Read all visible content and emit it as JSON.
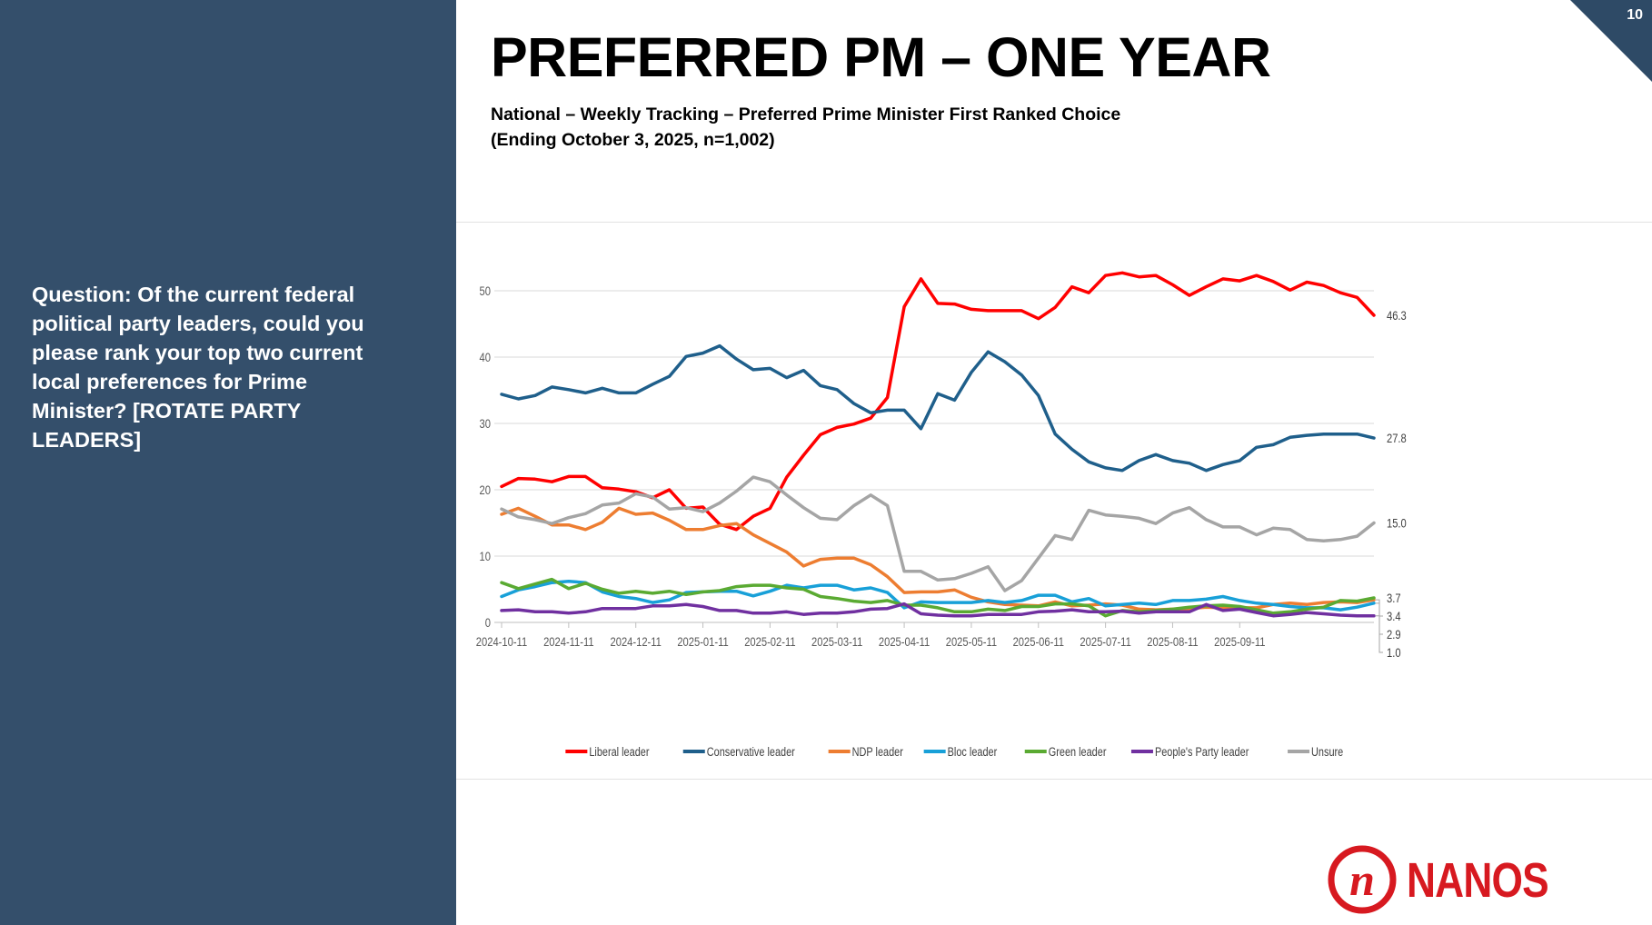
{
  "page": {
    "title": "PREFERRED PM – ONE YEAR",
    "subtitle_line1": "National – Weekly Tracking – Preferred Prime Minister First Ranked Choice",
    "subtitle_line2": "(Ending October 3, 2025, n=1,002)",
    "question": "Question: Of the current federal political party leaders, could you please rank your top two current local preferences for Prime Minister? [ROTATE PARTY LEADERS]",
    "page_number": "10",
    "logo_text": "NANOS",
    "logo_mark": "n"
  },
  "colors": {
    "sidebar": "#344f6b",
    "corner": "#2e4a66",
    "brand_red": "#d71920"
  },
  "chart_data": {
    "type": "line",
    "x_tick_labels": [
      "2024-10-11",
      "2024-11-11",
      "2024-12-11",
      "2025-01-11",
      "2025-02-11",
      "2025-03-11",
      "2025-04-11",
      "2025-05-11",
      "2025-06-11",
      "2025-07-11",
      "2025-08-11",
      "2025-09-11"
    ],
    "x_tick_index": [
      0,
      4,
      8,
      12,
      16,
      20,
      24,
      28,
      32,
      36,
      40,
      44
    ],
    "ylim": [
      0,
      50
    ],
    "yticks": [
      0,
      10,
      20,
      30,
      40,
      50
    ],
    "grid": true,
    "legend_position": "bottom",
    "end_labels": [
      "46.3",
      "27.8",
      "15.0",
      "3.4",
      "2.9",
      "3.7",
      "1.0"
    ],
    "series": [
      {
        "name": "Liberal leader",
        "color": "#ff0000",
        "values": [
          20.5,
          21.7,
          21.6,
          21.2,
          22.0,
          22.0,
          20.3,
          20.1,
          19.7,
          18.8,
          20.0,
          17.2,
          17.4,
          14.8,
          14.0,
          16.0,
          17.2,
          21.9,
          25.2,
          28.3,
          29.4,
          29.9,
          30.8,
          33.9,
          47.6,
          51.8,
          48.1,
          48.0,
          47.2,
          47.0,
          47.0,
          47.0,
          45.8,
          47.5,
          50.6,
          49.7,
          52.3,
          52.7,
          52.1,
          52.3,
          50.9,
          49.3,
          50.6,
          51.8,
          51.5,
          52.3,
          51.4,
          50.1,
          51.3,
          50.8,
          49.7,
          49.0,
          46.3
        ]
      },
      {
        "name": "Conservative leader",
        "color": "#1f5f8b",
        "values": [
          34.4,
          33.7,
          34.2,
          35.5,
          35.1,
          34.6,
          35.3,
          34.6,
          34.6,
          35.9,
          37.1,
          40.1,
          40.6,
          41.7,
          39.7,
          38.1,
          38.3,
          36.9,
          38.0,
          35.7,
          35.1,
          33.0,
          31.6,
          32.0,
          32.0,
          29.2,
          34.5,
          33.5,
          37.7,
          40.8,
          39.3,
          37.3,
          34.2,
          28.4,
          26.1,
          24.2,
          23.3,
          22.9,
          24.4,
          25.3,
          24.4,
          24.0,
          22.9,
          23.8,
          24.4,
          26.4,
          26.8,
          27.9,
          28.2,
          28.4,
          28.4,
          28.4,
          27.8
        ]
      },
      {
        "name": "NDP leader",
        "color": "#ed7d31",
        "values": [
          16.3,
          17.2,
          16.0,
          14.7,
          14.7,
          14.0,
          15.1,
          17.2,
          16.3,
          16.5,
          15.4,
          14.0,
          14.0,
          14.6,
          14.9,
          13.2,
          11.9,
          10.6,
          8.5,
          9.5,
          9.7,
          9.7,
          8.7,
          6.9,
          4.5,
          4.6,
          4.6,
          4.9,
          3.8,
          3.1,
          2.7,
          2.6,
          2.5,
          3.1,
          2.5,
          2.6,
          2.8,
          2.6,
          2.0,
          1.9,
          2.0,
          2.1,
          2.3,
          2.2,
          2.2,
          2.2,
          2.7,
          2.9,
          2.7,
          3.0,
          3.1,
          3.0,
          3.4
        ]
      },
      {
        "name": "Bloc leader",
        "color": "#18a0d8",
        "values": [
          3.9,
          4.9,
          5.4,
          6.0,
          6.2,
          6.0,
          4.6,
          3.9,
          3.6,
          3.0,
          3.4,
          4.5,
          4.6,
          4.7,
          4.7,
          4.0,
          4.7,
          5.6,
          5.2,
          5.6,
          5.6,
          4.9,
          5.2,
          4.5,
          2.2,
          3.1,
          3.0,
          3.0,
          3.0,
          3.3,
          3.0,
          3.3,
          4.1,
          4.1,
          3.1,
          3.6,
          2.5,
          2.7,
          2.9,
          2.7,
          3.3,
          3.3,
          3.5,
          3.9,
          3.3,
          2.9,
          2.7,
          2.4,
          2.2,
          2.2,
          1.9,
          2.3,
          2.9
        ]
      },
      {
        "name": "Green leader",
        "color": "#5aaa32",
        "values": [
          6.0,
          5.1,
          5.8,
          6.5,
          5.1,
          5.9,
          5.0,
          4.4,
          4.7,
          4.4,
          4.7,
          4.2,
          4.6,
          4.8,
          5.4,
          5.6,
          5.6,
          5.2,
          5.0,
          3.9,
          3.6,
          3.2,
          3.0,
          3.3,
          2.6,
          2.6,
          2.2,
          1.6,
          1.6,
          2.0,
          1.8,
          2.4,
          2.4,
          2.8,
          2.8,
          2.5,
          1.0,
          1.8,
          1.6,
          1.8,
          2.0,
          2.3,
          2.5,
          2.6,
          2.4,
          1.9,
          1.4,
          1.6,
          2.0,
          2.3,
          3.3,
          3.2,
          3.7
        ]
      },
      {
        "name": "People's Party leader",
        "color": "#7030a0",
        "values": [
          1.8,
          1.9,
          1.6,
          1.6,
          1.4,
          1.6,
          2.1,
          2.1,
          2.1,
          2.5,
          2.5,
          2.7,
          2.4,
          1.8,
          1.8,
          1.4,
          1.4,
          1.6,
          1.2,
          1.4,
          1.4,
          1.6,
          2.0,
          2.1,
          2.8,
          1.3,
          1.1,
          1.0,
          1.0,
          1.2,
          1.2,
          1.2,
          1.6,
          1.7,
          1.9,
          1.6,
          1.6,
          1.7,
          1.4,
          1.6,
          1.6,
          1.6,
          2.7,
          1.8,
          2.0,
          1.5,
          1.0,
          1.2,
          1.5,
          1.3,
          1.1,
          1.0,
          1.0
        ]
      },
      {
        "name": "Unsure",
        "color": "#a5a5a5",
        "values": [
          17.1,
          15.9,
          15.5,
          14.9,
          15.8,
          16.4,
          17.7,
          18.0,
          19.4,
          18.9,
          17.1,
          17.3,
          16.7,
          18.0,
          19.8,
          21.9,
          21.2,
          19.2,
          17.3,
          15.7,
          15.5,
          17.6,
          19.2,
          17.6,
          7.7,
          7.7,
          6.4,
          6.6,
          7.4,
          8.4,
          4.8,
          6.3,
          9.7,
          13.1,
          12.5,
          16.9,
          16.2,
          16.0,
          15.7,
          14.9,
          16.5,
          17.3,
          15.5,
          14.4,
          14.4,
          13.2,
          14.2,
          14.0,
          12.5,
          12.3,
          12.5,
          13.0,
          15.0
        ]
      }
    ]
  }
}
